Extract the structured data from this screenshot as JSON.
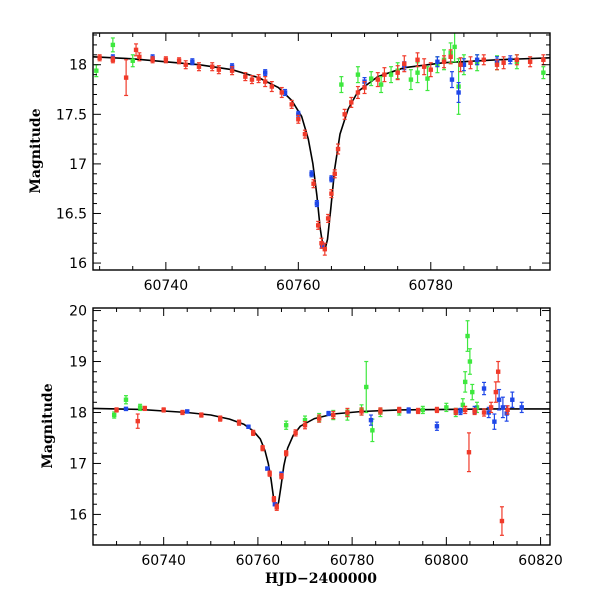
{
  "chart_data": [
    {
      "type": "scatter",
      "panel": "top",
      "title": "",
      "xlabel": "",
      "ylabel": "Magnitude",
      "xlim": [
        60729,
        60798
      ],
      "ylim": [
        18.32,
        15.93
      ],
      "y_inverted": true,
      "xticks": [
        60740,
        60760,
        60780
      ],
      "yticks": [
        16,
        16.5,
        17,
        17.5,
        18
      ],
      "ytick_labels": [
        "16",
        "16.5",
        "17",
        "17.5",
        "18"
      ],
      "grid": false,
      "legend": "none",
      "colors": {
        "red": "#f03a2a",
        "blue": "#1f47e8",
        "green": "#3ee83e",
        "model": "#000000"
      },
      "model_curve": {
        "x": [
          60729,
          60735,
          60740,
          60745,
          60750,
          60754,
          60757,
          60759,
          60760.5,
          60761.5,
          60762.2,
          60762.8,
          60763.3,
          60763.7,
          60764.0,
          60764.4,
          60764.9,
          60765.5,
          60766.3,
          60767.5,
          60769,
          60772,
          60776,
          60782,
          60790,
          60798
        ],
        "y": [
          18.08,
          18.06,
          18.03,
          18.0,
          17.95,
          17.87,
          17.77,
          17.64,
          17.48,
          17.25,
          17.0,
          16.68,
          16.35,
          16.18,
          16.13,
          16.24,
          16.55,
          16.95,
          17.3,
          17.55,
          17.73,
          17.88,
          17.97,
          18.02,
          18.05,
          18.07
        ]
      },
      "series": [
        {
          "color": "red",
          "points": [
            [
              60730,
              18.07,
              0.03
            ],
            [
              60732,
              18.05,
              0.03
            ],
            [
              60734,
              17.87,
              0.18
            ],
            [
              60735.5,
              18.15,
              0.06
            ],
            [
              60736,
              18.08,
              0.04
            ],
            [
              60738,
              18.05,
              0.03
            ],
            [
              60740,
              18.05,
              0.03
            ],
            [
              60742,
              18.04,
              0.03
            ],
            [
              60743,
              18.0,
              0.04
            ],
            [
              60745,
              17.98,
              0.04
            ],
            [
              60747,
              17.98,
              0.04
            ],
            [
              60748,
              17.95,
              0.04
            ],
            [
              60750,
              17.94,
              0.04
            ],
            [
              60752,
              17.88,
              0.04
            ],
            [
              60753,
              17.85,
              0.04
            ],
            [
              60754,
              17.86,
              0.04
            ],
            [
              60755,
              17.83,
              0.05
            ],
            [
              60756,
              17.78,
              0.05
            ],
            [
              60757.5,
              17.72,
              0.05
            ],
            [
              60759,
              17.6,
              0.04
            ],
            [
              60760,
              17.45,
              0.04
            ],
            [
              60761,
              17.3,
              0.04
            ],
            [
              60762.3,
              16.8,
              0.04
            ],
            [
              60763,
              16.38,
              0.04
            ],
            [
              60763.5,
              16.2,
              0.05
            ],
            [
              60764,
              16.14,
              0.06
            ],
            [
              60764.5,
              16.45,
              0.04
            ],
            [
              60765,
              16.7,
              0.04
            ],
            [
              60765.5,
              16.9,
              0.04
            ],
            [
              60766,
              17.15,
              0.05
            ],
            [
              60767,
              17.5,
              0.05
            ],
            [
              60768,
              17.62,
              0.05
            ],
            [
              60769,
              17.72,
              0.06
            ],
            [
              60770,
              17.77,
              0.06
            ],
            [
              60772,
              17.85,
              0.07
            ],
            [
              60773,
              17.9,
              0.07
            ],
            [
              60775,
              17.92,
              0.07
            ],
            [
              60776,
              18.01,
              0.08
            ],
            [
              60778,
              18.05,
              0.07
            ],
            [
              60779,
              17.98,
              0.08
            ],
            [
              60780,
              17.95,
              0.07
            ],
            [
              60782,
              18.03,
              0.06
            ],
            [
              60783,
              18.08,
              0.07
            ],
            [
              60784.5,
              18.0,
              0.07
            ],
            [
              60786,
              18.02,
              0.06
            ],
            [
              60788,
              18.05,
              0.05
            ],
            [
              60790,
              18.0,
              0.05
            ],
            [
              60791,
              18.02,
              0.06
            ],
            [
              60793,
              18.05,
              0.05
            ],
            [
              60795,
              18.03,
              0.05
            ],
            [
              60797,
              18.05,
              0.05
            ]
          ]
        },
        {
          "color": "blue",
          "points": [
            [
              60732,
              18.07,
              0.03
            ],
            [
              60738,
              18.07,
              0.03
            ],
            [
              60744,
              18.03,
              0.03
            ],
            [
              60750,
              17.98,
              0.03
            ],
            [
              60755,
              17.92,
              0.03
            ],
            [
              60758,
              17.72,
              0.03
            ],
            [
              60760,
              17.5,
              0.03
            ],
            [
              60762,
              16.9,
              0.03
            ],
            [
              60762.8,
              16.6,
              0.03
            ],
            [
              60763.6,
              16.18,
              0.03
            ],
            [
              60765,
              16.85,
              0.03
            ],
            [
              60770,
              17.83,
              0.04
            ],
            [
              60776,
              17.99,
              0.04
            ],
            [
              60781,
              18.03,
              0.05
            ],
            [
              60783.2,
              17.85,
              0.08
            ],
            [
              60784.2,
              17.72,
              0.1
            ],
            [
              60785,
              18.0,
              0.06
            ],
            [
              60787,
              18.05,
              0.05
            ],
            [
              60790,
              18.04,
              0.04
            ],
            [
              60792,
              18.05,
              0.04
            ]
          ]
        },
        {
          "color": "green",
          "points": [
            [
              60729.5,
              17.94,
              0.06
            ],
            [
              60732,
              18.2,
              0.07
            ],
            [
              60735,
              18.04,
              0.06
            ],
            [
              60766.5,
              17.8,
              0.08
            ],
            [
              60769,
              17.9,
              0.08
            ],
            [
              60771,
              17.86,
              0.07
            ],
            [
              60772.5,
              17.8,
              0.08
            ],
            [
              60774,
              17.9,
              0.08
            ],
            [
              60775,
              17.94,
              0.08
            ],
            [
              60777,
              17.85,
              0.1
            ],
            [
              60778,
              17.92,
              0.1
            ],
            [
              60779.5,
              17.86,
              0.12
            ],
            [
              60781,
              18.0,
              0.08
            ],
            [
              60782,
              18.05,
              0.1
            ],
            [
              60783,
              18.12,
              0.1
            ],
            [
              60783.6,
              18.18,
              0.15
            ],
            [
              60784.2,
              17.78,
              0.28
            ],
            [
              60785,
              18.0,
              0.1
            ],
            [
              60787,
              18.02,
              0.08
            ],
            [
              60790,
              18.02,
              0.07
            ],
            [
              60793,
              18.03,
              0.07
            ],
            [
              60797,
              17.92,
              0.06
            ]
          ]
        }
      ]
    },
    {
      "type": "scatter",
      "panel": "bottom",
      "title": "",
      "xlabel": "HJD−2400000",
      "ylabel": "Magnitude",
      "xlim": [
        60725,
        60822
      ],
      "ylim": [
        20.05,
        15.4
      ],
      "y_inverted": true,
      "xticks": [
        60740,
        60760,
        60780,
        60800,
        60820
      ],
      "yticks": [
        16,
        17,
        18,
        19,
        20
      ],
      "ytick_labels": [
        "16",
        "17",
        "18",
        "19",
        "20"
      ],
      "grid": false,
      "legend": "none",
      "colors": {
        "red": "#f03a2a",
        "blue": "#1f47e8",
        "green": "#3ee83e",
        "model": "#000000"
      },
      "model_curve": {
        "x": [
          60725,
          60735,
          60740,
          60745,
          60750,
          60754,
          60757,
          60759,
          60760.5,
          60761.5,
          60762.2,
          60762.8,
          60763.3,
          60763.7,
          60764.0,
          60764.4,
          60764.9,
          60765.5,
          60766.3,
          60767.5,
          60769,
          60772,
          60776,
          60782,
          60790,
          60800,
          60810,
          60822
        ],
        "y": [
          18.08,
          18.06,
          18.03,
          18.0,
          17.95,
          17.87,
          17.77,
          17.64,
          17.48,
          17.25,
          17.0,
          16.68,
          16.35,
          16.18,
          16.13,
          16.24,
          16.55,
          16.95,
          17.3,
          17.55,
          17.73,
          17.88,
          17.97,
          18.02,
          18.05,
          18.06,
          18.07,
          18.07
        ]
      },
      "series": [
        {
          "color": "red",
          "points": [
            [
              60730,
              18.05,
              0.04
            ],
            [
              60734.5,
              17.83,
              0.14
            ],
            [
              60736,
              18.08,
              0.04
            ],
            [
              60740,
              18.05,
              0.04
            ],
            [
              60744,
              18.0,
              0.04
            ],
            [
              60748,
              17.95,
              0.04
            ],
            [
              60752,
              17.88,
              0.05
            ],
            [
              60756,
              17.8,
              0.05
            ],
            [
              60759,
              17.6,
              0.05
            ],
            [
              60761,
              17.3,
              0.05
            ],
            [
              60762.5,
              16.8,
              0.05
            ],
            [
              60763.4,
              16.3,
              0.05
            ],
            [
              60764,
              16.14,
              0.06
            ],
            [
              60765,
              16.75,
              0.05
            ],
            [
              60766,
              17.2,
              0.05
            ],
            [
              60768,
              17.6,
              0.06
            ],
            [
              60770,
              17.75,
              0.07
            ],
            [
              60773,
              17.88,
              0.07
            ],
            [
              60776,
              17.95,
              0.07
            ],
            [
              60779,
              18.0,
              0.08
            ],
            [
              60782,
              18.02,
              0.07
            ],
            [
              60786,
              18.03,
              0.06
            ],
            [
              60790,
              18.05,
              0.05
            ],
            [
              60794,
              18.03,
              0.05
            ],
            [
              60798,
              18.05,
              0.05
            ],
            [
              60802,
              18.02,
              0.06
            ],
            [
              60804,
              18.05,
              0.07
            ],
            [
              60804.8,
              17.22,
              0.38
            ],
            [
              60806,
              18.02,
              0.06
            ],
            [
              60808,
              18.0,
              0.07
            ],
            [
              60809.5,
              18.1,
              0.1
            ],
            [
              60810.5,
              18.4,
              0.2
            ],
            [
              60811,
              18.8,
              0.2
            ],
            [
              60811.8,
              15.87,
              0.28
            ],
            [
              60813,
              18.05,
              0.08
            ]
          ]
        },
        {
          "color": "blue",
          "points": [
            [
              60732,
              18.07,
              0.03
            ],
            [
              60745,
              18.02,
              0.03
            ],
            [
              60758,
              17.72,
              0.03
            ],
            [
              60762,
              16.9,
              0.03
            ],
            [
              60763.6,
              16.2,
              0.03
            ],
            [
              60765,
              16.8,
              0.03
            ],
            [
              60775,
              17.98,
              0.04
            ],
            [
              60784,
              17.85,
              0.1
            ],
            [
              60792,
              18.04,
              0.05
            ],
            [
              60798,
              17.73,
              0.08
            ],
            [
              60803,
              18.02,
              0.06
            ],
            [
              60806,
              18.05,
              0.07
            ],
            [
              60808,
              18.47,
              0.12
            ],
            [
              60809,
              18.0,
              0.1
            ],
            [
              60810.2,
              17.82,
              0.15
            ],
            [
              60811.2,
              18.25,
              0.2
            ],
            [
              60812,
              18.1,
              0.2
            ],
            [
              60812.8,
              17.98,
              0.15
            ],
            [
              60814,
              18.25,
              0.15
            ],
            [
              60816,
              18.1,
              0.1
            ]
          ]
        },
        {
          "color": "green",
          "points": [
            [
              60729.5,
              17.95,
              0.06
            ],
            [
              60732,
              18.25,
              0.08
            ],
            [
              60735,
              18.1,
              0.06
            ],
            [
              60766,
              17.75,
              0.08
            ],
            [
              60770,
              17.85,
              0.08
            ],
            [
              60773,
              17.9,
              0.08
            ],
            [
              60776,
              17.95,
              0.09
            ],
            [
              60779,
              17.95,
              0.1
            ],
            [
              60782,
              18.05,
              0.1
            ],
            [
              60783,
              18.5,
              0.5
            ],
            [
              60784.3,
              17.65,
              0.22
            ],
            [
              60786,
              18.0,
              0.08
            ],
            [
              60790,
              18.02,
              0.07
            ],
            [
              60795,
              18.05,
              0.07
            ],
            [
              60800,
              18.1,
              0.08
            ],
            [
              60802,
              18.0,
              0.08
            ],
            [
              60803.5,
              18.15,
              0.12
            ],
            [
              60804,
              18.6,
              0.2
            ],
            [
              60804.5,
              19.5,
              0.3
            ],
            [
              60805,
              19.0,
              0.25
            ],
            [
              60805.5,
              18.4,
              0.15
            ],
            [
              60806.5,
              18.1,
              0.1
            ]
          ]
        }
      ]
    }
  ]
}
